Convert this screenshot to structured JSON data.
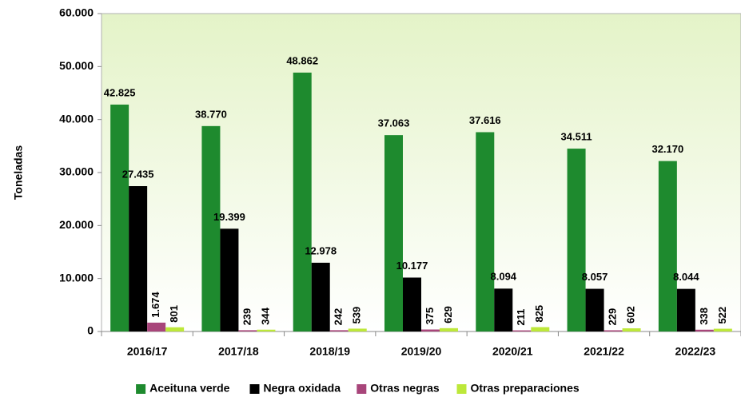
{
  "chart_data": {
    "type": "bar",
    "y_label": "Toneladas",
    "categories": [
      "2016/17",
      "2017/18",
      "2018/19",
      "2019/20",
      "2020/21",
      "2021/22",
      "2022/23"
    ],
    "series": [
      {
        "name": "Aceituna verde",
        "color": "#1e8a2e",
        "values": [
          42825,
          38770,
          48862,
          37063,
          37616,
          34511,
          32170
        ],
        "value_labels": [
          "42.825",
          "38.770",
          "48.862",
          "37.063",
          "37.616",
          "34.511",
          "32.170"
        ]
      },
      {
        "name": "Negra oxidada",
        "color": "#000000",
        "values": [
          27435,
          19399,
          12978,
          10177,
          8094,
          8057,
          8044
        ],
        "value_labels": [
          "27.435",
          "19.399",
          "12.978",
          "10.177",
          "8.094",
          "8.057",
          "8.044"
        ]
      },
      {
        "name": "Otras negras",
        "color": "#a8457a",
        "values": [
          1674,
          239,
          242,
          375,
          211,
          229,
          338
        ],
        "value_labels": [
          "1.674",
          "239",
          "242",
          "375",
          "211",
          "229",
          "338"
        ]
      },
      {
        "name": "Otras preparaciones",
        "color": "#bde83a",
        "values": [
          801,
          344,
          539,
          629,
          825,
          602,
          522
        ],
        "value_labels": [
          "801",
          "344",
          "539",
          "629",
          "825",
          "602",
          "522"
        ]
      }
    ],
    "ylim": [
      0,
      60000
    ],
    "yticks": [
      0,
      {
        "value": 10000,
        "label": "10.000"
      },
      {
        "value": 20000,
        "label": "20.000"
      },
      {
        "value": 30000,
        "label": "30.000"
      },
      {
        "value": 40000,
        "label": "40.000"
      },
      {
        "value": 50000,
        "label": "50.000"
      },
      {
        "value": 60000,
        "label": "60.000"
      }
    ],
    "grid": false,
    "legend": "bottom"
  }
}
